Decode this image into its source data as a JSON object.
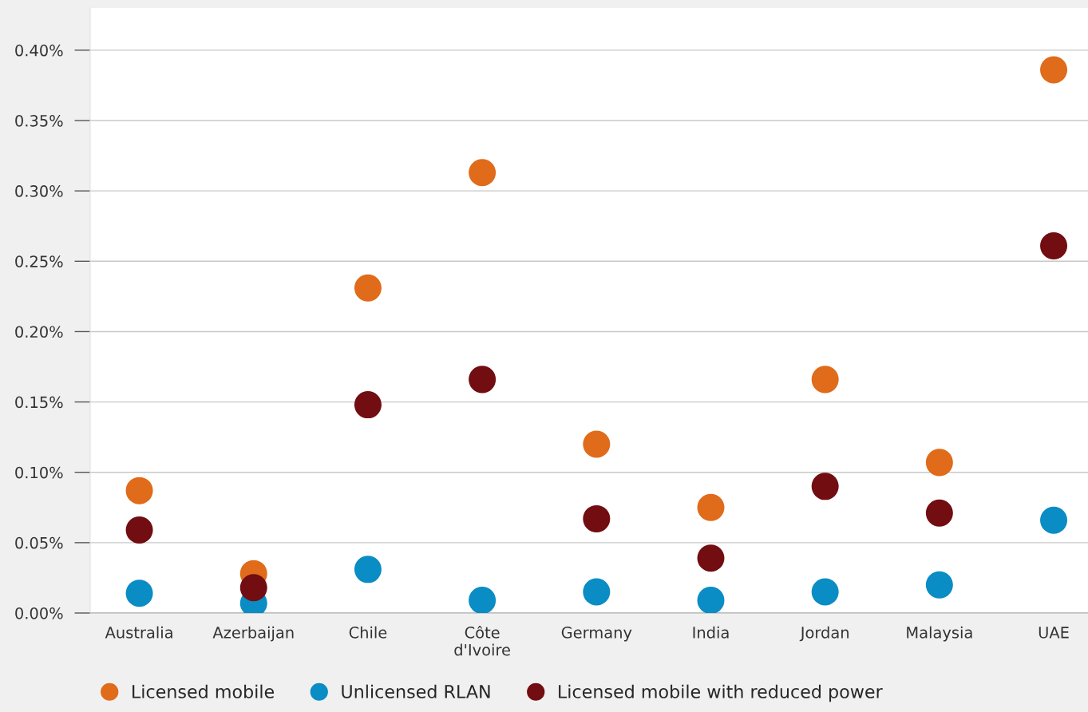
{
  "chart_data": {
    "type": "scatter",
    "categories": [
      "Australia",
      "Azerbaijan",
      "Chile",
      "Côte\nd'Ivoire",
      "Germany",
      "India",
      "Jordan",
      "Malaysia",
      "UAE"
    ],
    "series": [
      {
        "name": "Licensed mobile",
        "color": "#e06b1a",
        "values": [
          0.087,
          0.028,
          0.231,
          0.313,
          0.12,
          0.075,
          0.166,
          0.107,
          0.386
        ]
      },
      {
        "name": "Unlicensed RLAN",
        "color": "#0a8cc4",
        "values": [
          0.014,
          0.007,
          0.031,
          0.009,
          0.015,
          0.009,
          0.015,
          0.02,
          0.066
        ]
      },
      {
        "name": "Licensed mobile with reduced power",
        "color": "#720d12",
        "values": [
          0.059,
          0.018,
          0.148,
          0.166,
          0.067,
          0.039,
          0.09,
          0.071,
          0.261
        ]
      }
    ],
    "ylim": [
      0,
      0.43
    ],
    "yticks": [
      {
        "value": 0,
        "label": "0.00%"
      },
      {
        "value": 0.05,
        "label": "0.05%"
      },
      {
        "value": 0.1,
        "label": "0.10%"
      },
      {
        "value": 0.15,
        "label": "0.15%"
      },
      {
        "value": 0.2,
        "label": "0.20%"
      },
      {
        "value": 0.25,
        "label": "0.25%"
      },
      {
        "value": 0.3,
        "label": "0.30%"
      },
      {
        "value": 0.35,
        "label": "0.35%"
      },
      {
        "value": 0.4,
        "label": "0.40%"
      }
    ],
    "grid": "y",
    "legend": "bottom",
    "marker": "circle"
  }
}
